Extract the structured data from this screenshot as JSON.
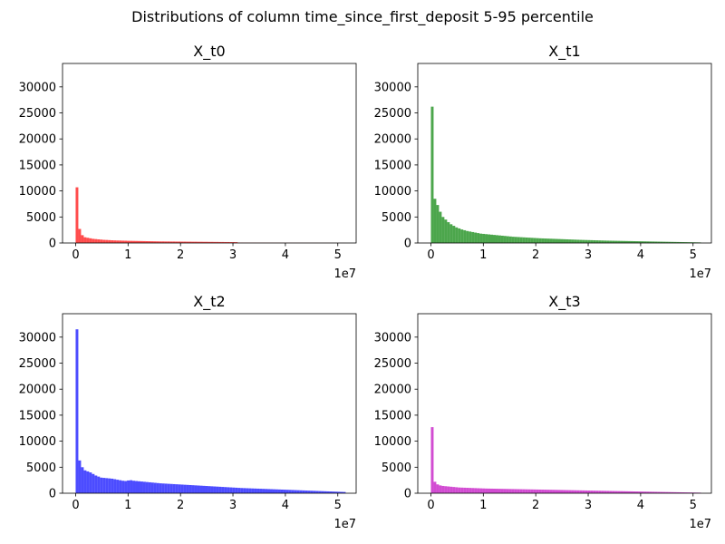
{
  "figure": {
    "title": "Distributions of column time_since_first_deposit 5-95 percentile"
  },
  "chart_data": [
    {
      "type": "bar",
      "title": "X_t0",
      "xlabel": "",
      "ylabel": "",
      "x_offset_label": "1e7",
      "color": "#ff0000",
      "alpha": 0.7,
      "xlim": [
        -2500000.0,
        53500000.0
      ],
      "ylim": [
        0,
        34500
      ],
      "xticks": [
        0,
        1,
        2,
        3,
        4,
        5
      ],
      "yticks": [
        0,
        5000,
        10000,
        15000,
        20000,
        25000,
        30000
      ],
      "bin_range": [
        0,
        51500000.0
      ],
      "bin_width": 515000.0,
      "values": [
        10700,
        2700,
        1500,
        1100,
        1000,
        900,
        800,
        750,
        700,
        650,
        600,
        580,
        550,
        520,
        500,
        480,
        470,
        450,
        440,
        420,
        410,
        400,
        390,
        380,
        370,
        360,
        350,
        340,
        330,
        320,
        310,
        300,
        300,
        290,
        290,
        280,
        280,
        270,
        270,
        260,
        260,
        250,
        250,
        240,
        240,
        230,
        230,
        220,
        220,
        210,
        210,
        200,
        200,
        190,
        190,
        180,
        180,
        170,
        170,
        160,
        60,
        60,
        55,
        55,
        50,
        50,
        50,
        45,
        45,
        45,
        40,
        40,
        40,
        35,
        35,
        35,
        30,
        30,
        30,
        30,
        25,
        25,
        25,
        25,
        20,
        20,
        20,
        20,
        20,
        20,
        15,
        15,
        15,
        15,
        15,
        10,
        10,
        10,
        10,
        10
      ]
    },
    {
      "type": "bar",
      "title": "X_t1",
      "xlabel": "",
      "ylabel": "",
      "x_offset_label": "1e7",
      "color": "#008000",
      "alpha": 0.7,
      "xlim": [
        -2500000.0,
        53500000.0
      ],
      "ylim": [
        0,
        34500
      ],
      "xticks": [
        0,
        1,
        2,
        3,
        4,
        5
      ],
      "yticks": [
        0,
        5000,
        10000,
        15000,
        20000,
        25000,
        30000
      ],
      "bin_range": [
        0,
        51500000.0
      ],
      "bin_width": 515000.0,
      "values": [
        26200,
        8500,
        7300,
        6000,
        5000,
        4500,
        4000,
        3600,
        3300,
        3000,
        2800,
        2600,
        2450,
        2300,
        2200,
        2100,
        2000,
        1900,
        1800,
        1750,
        1700,
        1650,
        1600,
        1550,
        1500,
        1450,
        1400,
        1350,
        1300,
        1250,
        1200,
        1170,
        1140,
        1110,
        1080,
        1050,
        1020,
        990,
        960,
        930,
        900,
        880,
        860,
        840,
        820,
        800,
        780,
        760,
        740,
        720,
        700,
        680,
        660,
        640,
        620,
        600,
        585,
        570,
        555,
        540,
        525,
        510,
        495,
        480,
        465,
        450,
        440,
        430,
        420,
        410,
        400,
        390,
        380,
        370,
        360,
        350,
        340,
        330,
        320,
        310,
        300,
        290,
        280,
        270,
        260,
        250,
        240,
        230,
        220,
        210,
        200,
        190,
        180,
        170,
        160,
        150,
        140,
        130,
        120,
        110
      ]
    },
    {
      "type": "bar",
      "title": "X_t2",
      "xlabel": "",
      "ylabel": "",
      "x_offset_label": "1e7",
      "color": "#0000ff",
      "alpha": 0.7,
      "xlim": [
        -2500000.0,
        53500000.0
      ],
      "ylim": [
        0,
        34500
      ],
      "xticks": [
        0,
        1,
        2,
        3,
        4,
        5
      ],
      "yticks": [
        0,
        5000,
        10000,
        15000,
        20000,
        25000,
        30000
      ],
      "bin_range": [
        0,
        51500000.0
      ],
      "bin_width": 515000.0,
      "values": [
        31500,
        6300,
        5000,
        4400,
        4200,
        4000,
        3700,
        3400,
        3200,
        3000,
        2950,
        2900,
        2850,
        2800,
        2700,
        2600,
        2500,
        2400,
        2350,
        2450,
        2500,
        2400,
        2350,
        2300,
        2250,
        2200,
        2150,
        2100,
        2050,
        2000,
        1950,
        1900,
        1870,
        1840,
        1810,
        1780,
        1750,
        1720,
        1690,
        1660,
        1630,
        1600,
        1570,
        1540,
        1510,
        1480,
        1450,
        1420,
        1390,
        1360,
        1330,
        1300,
        1270,
        1240,
        1210,
        1180,
        1150,
        1120,
        1090,
        1060,
        1030,
        1000,
        980,
        960,
        940,
        920,
        900,
        880,
        860,
        840,
        820,
        800,
        780,
        760,
        740,
        720,
        700,
        680,
        660,
        640,
        620,
        600,
        580,
        560,
        540,
        520,
        500,
        480,
        460,
        440,
        420,
        400,
        380,
        360,
        340,
        320,
        300,
        280,
        260,
        240
      ]
    },
    {
      "type": "bar",
      "title": "X_t3",
      "xlabel": "",
      "ylabel": "",
      "x_offset_label": "1e7",
      "color": "#bf00bf",
      "alpha": 0.7,
      "xlim": [
        -2500000.0,
        53500000.0
      ],
      "ylim": [
        0,
        34500
      ],
      "xticks": [
        0,
        1,
        2,
        3,
        4,
        5
      ],
      "yticks": [
        0,
        5000,
        10000,
        15000,
        20000,
        25000,
        30000
      ],
      "bin_range": [
        0,
        51500000.0
      ],
      "bin_width": 515000.0,
      "values": [
        12700,
        2200,
        1700,
        1500,
        1400,
        1350,
        1300,
        1250,
        1200,
        1150,
        1100,
        1080,
        1060,
        1040,
        1020,
        1000,
        980,
        960,
        940,
        920,
        900,
        890,
        880,
        870,
        860,
        850,
        840,
        830,
        820,
        810,
        800,
        790,
        780,
        770,
        760,
        750,
        740,
        730,
        720,
        710,
        700,
        690,
        680,
        670,
        660,
        650,
        640,
        630,
        620,
        610,
        600,
        590,
        580,
        570,
        560,
        550,
        540,
        530,
        520,
        510,
        500,
        490,
        480,
        470,
        460,
        450,
        440,
        430,
        420,
        410,
        400,
        390,
        380,
        370,
        360,
        350,
        340,
        330,
        320,
        310,
        300,
        290,
        280,
        270,
        260,
        250,
        240,
        230,
        220,
        210,
        200,
        190,
        180,
        170,
        160,
        150,
        140,
        130,
        120,
        110
      ]
    }
  ]
}
